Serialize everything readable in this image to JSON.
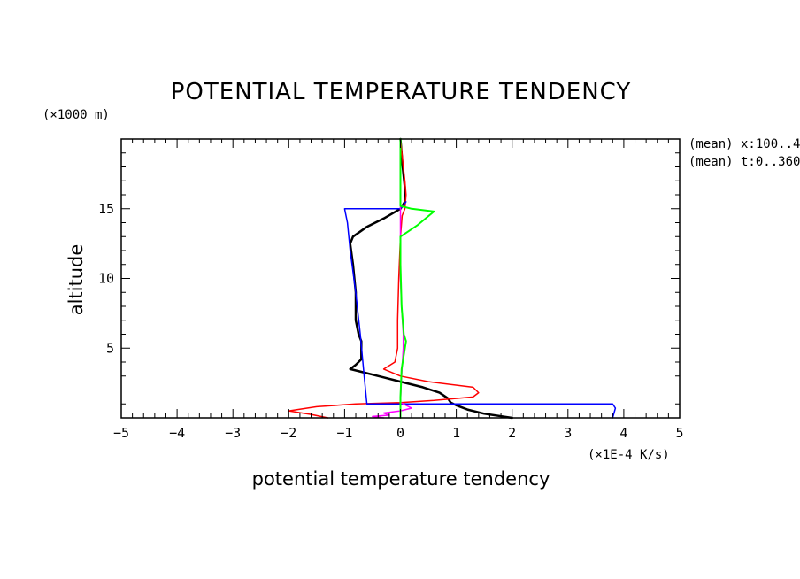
{
  "chart_data": {
    "type": "line",
    "title": "POTENTIAL TEMPERATURE TENDENCY",
    "xlabel": "potential temperature tendency",
    "xunit": "(×1E-4 K/s)",
    "ylabel": "altitude",
    "yunit": "(×1000 m)",
    "annotations": [
      "(mean) x:100..4",
      "(mean) t:0..360"
    ],
    "xlim": [
      -5,
      5
    ],
    "ylim": [
      0,
      20
    ],
    "xticks": [
      -5,
      -4,
      -3,
      -2,
      -1,
      0,
      1,
      2,
      3,
      4,
      5
    ],
    "yticks": [
      5,
      10,
      15
    ],
    "grid": false,
    "series": [
      {
        "color": "#000000",
        "width": 2.5,
        "points": [
          [
            2.0,
            0.0
          ],
          [
            1.5,
            0.3
          ],
          [
            1.2,
            0.6
          ],
          [
            1.0,
            0.9
          ],
          [
            0.9,
            1.1
          ],
          [
            0.85,
            1.4
          ],
          [
            0.7,
            1.8
          ],
          [
            0.4,
            2.2
          ],
          [
            0.0,
            2.6
          ],
          [
            -0.3,
            2.9
          ],
          [
            -0.7,
            3.3
          ],
          [
            -0.9,
            3.5
          ],
          [
            -0.8,
            3.8
          ],
          [
            -0.7,
            4.2
          ],
          [
            -0.7,
            5.0
          ],
          [
            -0.7,
            5.5
          ],
          [
            -0.75,
            6.0
          ],
          [
            -0.8,
            7.0
          ],
          [
            -0.8,
            9.0
          ],
          [
            -0.85,
            11.0
          ],
          [
            -0.9,
            12.5
          ],
          [
            -0.85,
            13.0
          ],
          [
            -0.6,
            13.7
          ],
          [
            -0.3,
            14.3
          ],
          [
            0.0,
            15.0
          ],
          [
            0.08,
            15.5
          ],
          [
            0.08,
            16.5
          ],
          [
            0.04,
            18.0
          ],
          [
            0.0,
            20.0
          ]
        ]
      },
      {
        "color": "#ff0000",
        "width": 1.5,
        "points": [
          [
            -1.3,
            0.0
          ],
          [
            -1.6,
            0.25
          ],
          [
            -2.0,
            0.5
          ],
          [
            -1.5,
            0.8
          ],
          [
            -0.8,
            1.0
          ],
          [
            0.0,
            1.1
          ],
          [
            0.6,
            1.25
          ],
          [
            1.3,
            1.5
          ],
          [
            1.4,
            1.8
          ],
          [
            1.3,
            2.2
          ],
          [
            0.5,
            2.6
          ],
          [
            0.0,
            3.0
          ],
          [
            -0.3,
            3.5
          ],
          [
            -0.1,
            4.0
          ],
          [
            -0.05,
            5.0
          ],
          [
            -0.05,
            7.0
          ],
          [
            -0.03,
            10.0
          ],
          [
            0.0,
            13.0
          ],
          [
            0.03,
            14.5
          ],
          [
            0.08,
            15.0
          ],
          [
            0.1,
            16.0
          ],
          [
            0.08,
            17.0
          ],
          [
            0.05,
            18.0
          ],
          [
            0.0,
            20.0
          ]
        ]
      },
      {
        "color": "#0000ff",
        "width": 1.5,
        "points": [
          [
            3.8,
            0.0
          ],
          [
            3.85,
            0.7
          ],
          [
            3.8,
            1.0
          ],
          [
            0.0,
            1.0
          ],
          [
            -0.6,
            1.0
          ],
          [
            -0.65,
            3.0
          ],
          [
            -0.72,
            6.0
          ],
          [
            -0.8,
            9.0
          ],
          [
            -0.9,
            12.0
          ],
          [
            -0.95,
            14.0
          ],
          [
            -1.0,
            15.0
          ],
          [
            0.0,
            15.0
          ],
          [
            0.1,
            15.5
          ]
        ]
      },
      {
        "color": "#ff00ff",
        "width": 1.5,
        "points": [
          [
            -0.3,
            0.0
          ],
          [
            -0.5,
            0.1
          ],
          [
            -0.2,
            0.2
          ],
          [
            -0.3,
            0.35
          ],
          [
            0.0,
            0.5
          ],
          [
            0.2,
            0.7
          ],
          [
            0.1,
            0.9
          ],
          [
            0.0,
            1.1
          ],
          [
            0.02,
            3.0
          ],
          [
            0.05,
            5.0
          ],
          [
            0.05,
            6.0
          ],
          [
            0.02,
            8.0
          ],
          [
            0.0,
            10.0
          ],
          [
            0.0,
            20.0
          ]
        ]
      },
      {
        "color": "#00ff00",
        "width": 2.0,
        "points": [
          [
            0.0,
            0.0
          ],
          [
            0.0,
            1.5
          ],
          [
            0.02,
            3.5
          ],
          [
            0.1,
            5.5
          ],
          [
            0.06,
            6.0
          ],
          [
            0.02,
            8.0
          ],
          [
            0.0,
            11.0
          ],
          [
            0.0,
            13.0
          ],
          [
            0.3,
            13.8
          ],
          [
            0.6,
            14.8
          ],
          [
            0.2,
            15.0
          ],
          [
            0.0,
            15.2
          ],
          [
            0.0,
            20.0
          ]
        ]
      }
    ]
  }
}
